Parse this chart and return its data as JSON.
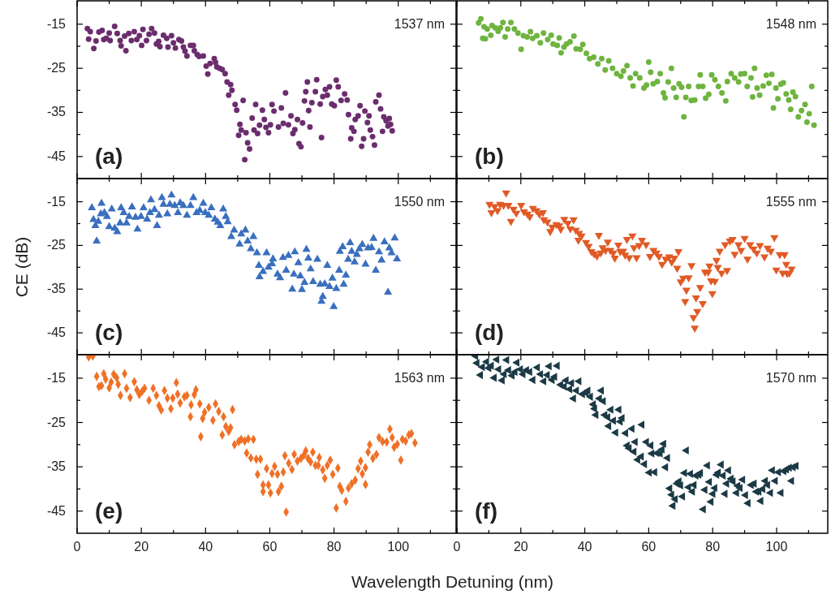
{
  "chart_data": [
    {
      "type": "scatter",
      "annotations": [
        "1537 nm",
        "(a)"
      ],
      "marker": "circle",
      "tick_labels": "y",
      "xlim": [
        0,
        118
      ],
      "ylim": [
        -50,
        -9.7
      ],
      "xticks": [
        0,
        {
          "value": 10,
          "label": null
        },
        20,
        {
          "value": 30,
          "label": null
        },
        40,
        {
          "value": 50,
          "label": null
        },
        60,
        {
          "value": 70,
          "label": null
        },
        80,
        {
          "value": 90,
          "label": null
        },
        100,
        {
          "value": 110,
          "label": null
        }
      ],
      "yticks": [
        -45,
        {
          "value": -40,
          "label": null
        },
        -35,
        {
          "value": -30,
          "label": null
        },
        -25,
        {
          "value": -20,
          "label": null
        },
        -15
      ],
      "series": [
        {
          "color": "#6b2d6e",
          "x": [
            3.2,
            4.1,
            3.6,
            5.2,
            5.9,
            6.8,
            7.8,
            8.3,
            9.1,
            10,
            10.3,
            11.7,
            12.5,
            13.4,
            13.7,
            14.8,
            15.2,
            16.1,
            16.9,
            17.8,
            18.6,
            19.4,
            20.1,
            20.5,
            21.6,
            22.4,
            23.2,
            24.1,
            24.7,
            25.4,
            25.8,
            26.9,
            27.9,
            28.3,
            29.4,
            30,
            30.6,
            31.7,
            32.5,
            33.1,
            33.6,
            34.2,
            35.3,
            36.2,
            36.5,
            37.4,
            38,
            39.3,
            40.2,
            40.7,
            41.4,
            42.7,
            43.1,
            43.5,
            44.4,
            45.2,
            46.1,
            46.7,
            47.8,
            48.2,
            47.2,
            49.2,
            49.7,
            50.7,
            51.7,
            50.3,
            51.1,
            52.6,
            53.1,
            53.7,
            52.2,
            54.5,
            55.1,
            55.6,
            56.2,
            56.8,
            57.7,
            58.3,
            58.8,
            59.6,
            60.2,
            60.7,
            61.3,
            62.7,
            63.6,
            64.2,
            64.9,
            65.8,
            66.6,
            67.2,
            67.8,
            68.6,
            69.1,
            69.7,
            70.2,
            70.8,
            71.2,
            71.7,
            72.1,
            72.5,
            73.1,
            74.2,
            74.6,
            75.7,
            76.1,
            76.5,
            77.3,
            77.9,
            78.6,
            79.3,
            80.1,
            80.7,
            81.3,
            82.2,
            83.3,
            84.1,
            84.5,
            85.2,
            85.5,
            86.2,
            86.6,
            87.5,
            88.1,
            88.6,
            89.2,
            89.6,
            90.4,
            90.9,
            91.3,
            92,
            92.6,
            93,
            94,
            94.5,
            95.1,
            95.5,
            96.2,
            96.8,
            97.2,
            97.6,
            98.1
          ],
          "values": [
            -16,
            -16.7,
            -18.4,
            -20.5,
            -18.8,
            -16.8,
            -16.4,
            -18.5,
            -18.2,
            -17,
            -18.7,
            -15.5,
            -17.1,
            -18.7,
            -19.9,
            -17.7,
            -21,
            -17.1,
            -18.7,
            -16.7,
            -18.5,
            -17.6,
            -19.8,
            -16.2,
            -18.7,
            -17.3,
            -16,
            -17,
            -19.5,
            -18.9,
            -20.1,
            -17.5,
            -18.2,
            -20.2,
            -17.6,
            -19.2,
            -20.4,
            -18.5,
            -18.8,
            -20.2,
            -21.1,
            -22.2,
            -19.8,
            -19.8,
            -21,
            -21.9,
            -22.3,
            -22.2,
            -24.5,
            -26.3,
            -23.9,
            -22.8,
            -23.7,
            -24.7,
            -25,
            -25.3,
            -26.2,
            -28.1,
            -28.7,
            -30,
            -31.1,
            -33.2,
            -34.5,
            -37.7,
            -32.3,
            -40.2,
            -39,
            -39.6,
            -41.9,
            -43.3,
            -45.7,
            -36.3,
            -39,
            -33.2,
            -39.8,
            -37.9,
            -34.5,
            -36.6,
            -38.4,
            -39.6,
            -37.8,
            -33.2,
            -34.7,
            -38.3,
            -34,
            -37.5,
            -30.6,
            -37.8,
            -35.8,
            -39.8,
            -38.9,
            -36.6,
            -42.1,
            -42.8,
            -37.4,
            -32.4,
            -30.3,
            -28.1,
            -34.6,
            -38.3,
            -32.8,
            -30.3,
            -27.6,
            -33.1,
            -40.7,
            -31.4,
            -29.8,
            -31.1,
            -29.2,
            -33.1,
            -33.5,
            -27.7,
            -29.2,
            -32.3,
            -30.8,
            -32.2,
            -35.5,
            -41,
            -38.5,
            -39.3,
            -36.6,
            -35.8,
            -33.5,
            -42.7,
            -41,
            -34.7,
            -37.3,
            -35.8,
            -39,
            -40.5,
            -42.4,
            -32.6,
            -31.1,
            -34.2,
            -39.3,
            -36,
            -36.9,
            -38.1,
            -36.4,
            -37.7,
            -39.2
          ]
        }
      ]
    },
    {
      "type": "scatter",
      "annotations": [
        "1548 nm",
        "(b)"
      ],
      "marker": "circle",
      "tick_labels": false,
      "xlim": [
        0,
        116
      ],
      "ylim": [
        -50,
        -9.7
      ],
      "xticks": [
        0,
        {
          "value": 10,
          "label": null
        },
        20,
        {
          "value": 30,
          "label": null
        },
        40,
        {
          "value": 50,
          "label": null
        },
        60,
        {
          "value": 70,
          "label": null
        },
        80,
        {
          "value": 90,
          "label": null
        },
        100,
        {
          "value": 110,
          "label": null
        }
      ],
      "yticks": [
        -45,
        {
          "value": -40,
          "label": null
        },
        -35,
        {
          "value": -30,
          "label": null
        },
        -25,
        {
          "value": -20,
          "label": null
        },
        -15
      ],
      "series": [
        {
          "color": "#6eb43f",
          "x": [
            6.8,
            7.5,
            8.1,
            8.9,
            8.5,
            9.5,
            10.6,
            11,
            12,
            12.9,
            13.6,
            14.4,
            15.1,
            15.9,
            16.9,
            18,
            19.1,
            20.1,
            20.8,
            22,
            23,
            23.7,
            25,
            26.1,
            27.1,
            28.4,
            29.5,
            30.1,
            31.4,
            32.6,
            32,
            33.5,
            34.3,
            35.4,
            36.6,
            37.3,
            38.6,
            39.4,
            40.5,
            41.5,
            42.8,
            44.1,
            45.3,
            46.4,
            47.5,
            48.7,
            50,
            51.3,
            52.1,
            53.2,
            54.2,
            55.1,
            55.9,
            57.2,
            58.5,
            59.3,
            60,
            60.6,
            61.4,
            62.7,
            63.6,
            64.6,
            65.1,
            66.1,
            67.1,
            67.8,
            68.6,
            69.5,
            70.3,
            71,
            71.6,
            72.5,
            73.3,
            74.4,
            75.6,
            76.1,
            76.9,
            77.8,
            78.8,
            79.7,
            80.7,
            81.8,
            82.9,
            84.1,
            84.6,
            85.8,
            86.9,
            88.1,
            88.8,
            90,
            90.8,
            92,
            92.5,
            93.1,
            93.9,
            94.7,
            95.8,
            96.8,
            97.6,
            98.5,
            99,
            99.8,
            100.4,
            101.3,
            102.1,
            103,
            103.8,
            104.4,
            105.1,
            105.9,
            106.8,
            107.8,
            108.9,
            109.5,
            110.2,
            111,
            111.7
          ],
          "values": [
            -14.7,
            -13.8,
            -18.2,
            -18.3,
            -15.6,
            -16.1,
            -17.5,
            -15.3,
            -15.8,
            -16.6,
            -15.8,
            -14.6,
            -17.9,
            -16.1,
            -14.6,
            -16.1,
            -17,
            -20.7,
            -17.6,
            -17.9,
            -16.7,
            -18.2,
            -17.6,
            -19.2,
            -17,
            -18.5,
            -17.5,
            -19.5,
            -19.8,
            -21.5,
            -18.1,
            -20.2,
            -19.5,
            -19,
            -17.7,
            -20.6,
            -20.7,
            -19.6,
            -21.6,
            -22.8,
            -22.5,
            -24,
            -22.8,
            -25.4,
            -23.3,
            -25,
            -26.2,
            -26.8,
            -25.6,
            -24.4,
            -27.2,
            -29,
            -26.2,
            -27.2,
            -29.5,
            -28.8,
            -23.6,
            -25.9,
            -28.5,
            -28,
            -26.2,
            -30.6,
            -31.7,
            -28.1,
            -25,
            -29.5,
            -31.6,
            -28.5,
            -29.3,
            -36,
            -31.6,
            -29.1,
            -32.3,
            -32.2,
            -29.1,
            -26.5,
            -29.1,
            -31.8,
            -30.9,
            -26.5,
            -27.6,
            -29.1,
            -30.6,
            -32.4,
            -28,
            -26.2,
            -27.2,
            -28.1,
            -26.3,
            -26.2,
            -29.1,
            -27.2,
            -31.5,
            -25,
            -29.5,
            -31.1,
            -29,
            -26.6,
            -28.4,
            -26.4,
            -34,
            -29.5,
            -31.9,
            -28.6,
            -28.3,
            -30.8,
            -32.2,
            -34.3,
            -30.4,
            -31.4,
            -36,
            -34.6,
            -33.2,
            -37.2,
            -35.3,
            -29.1,
            -37.9
          ]
        }
      ]
    },
    {
      "type": "scatter",
      "annotations": [
        "1550 nm",
        "(c)"
      ],
      "ylabel": "CE (dB)",
      "marker": "triangle",
      "tick_labels": "y",
      "xlim": [
        0,
        118
      ],
      "ylim": [
        -50,
        -9.7
      ],
      "xticks": [
        0,
        {
          "value": 10,
          "label": null
        },
        20,
        {
          "value": 30,
          "label": null
        },
        40,
        {
          "value": 50,
          "label": null
        },
        60,
        {
          "value": 70,
          "label": null
        },
        80,
        {
          "value": 90,
          "label": null
        },
        100,
        {
          "value": 110,
          "label": null
        }
      ],
      "yticks": [
        -45,
        {
          "value": -40,
          "label": null
        },
        -35,
        {
          "value": -30,
          "label": null
        },
        -25,
        {
          "value": -20,
          "label": null
        },
        -15
      ],
      "series": [
        {
          "color": "#3a6fbf",
          "x": [
            4.6,
            5.1,
            5.7,
            6.1,
            6.6,
            7.6,
            7.4,
            8.5,
            9.3,
            10,
            10.8,
            11.7,
            12.5,
            13.4,
            13.7,
            14.5,
            15.4,
            16.2,
            17.1,
            18.2,
            18.8,
            19.9,
            20.7,
            21.8,
            22.7,
            23,
            24.1,
            24.9,
            25.5,
            26.4,
            26.9,
            28.1,
            28.9,
            29.4,
            30.4,
            31.4,
            32.1,
            33.1,
            34.2,
            35.3,
            36.2,
            37.2,
            38.2,
            39.3,
            39.9,
            41,
            41.8,
            42.9,
            43.8,
            44.6,
            45.5,
            46.3,
            46.9,
            48,
            48.9,
            50.6,
            51.1,
            52.4,
            53.1,
            54.1,
            54.9,
            56,
            56.8,
            57.9,
            56.6,
            59,
            59.6,
            60.7,
            61,
            62.4,
            63.2,
            64.1,
            65.1,
            65.8,
            67,
            67.5,
            67.8,
            68.9,
            69.5,
            70,
            70.8,
            71.4,
            72,
            72.7,
            73.5,
            74.8,
            75.7,
            76.1,
            76.5,
            77.1,
            77.9,
            78.6,
            79.5,
            79.9,
            80.7,
            81.6,
            81.8,
            82.7,
            83,
            83.7,
            84.4,
            85,
            85.5,
            86.4,
            87.1,
            87.9,
            88.8,
            89.8,
            90.6,
            91.7,
            92.3,
            93,
            94,
            94.8,
            95.7,
            96.8,
            97.2,
            97.9,
            98.9,
            99.6
          ],
          "values": [
            -16.4,
            -19.1,
            -20.5,
            -24,
            -19.5,
            -15.4,
            -17.8,
            -17.5,
            -18.4,
            -20.7,
            -16.7,
            -21.1,
            -21.9,
            -19.9,
            -16.4,
            -17.5,
            -19.9,
            -18.4,
            -16.2,
            -18.6,
            -21.3,
            -18.4,
            -16.4,
            -19,
            -17.5,
            -14.6,
            -16.8,
            -20.5,
            -18.1,
            -14.1,
            -15.6,
            -17.8,
            -15.6,
            -13.5,
            -15.9,
            -17.5,
            -15.3,
            -15.9,
            -18.1,
            -15.9,
            -14.1,
            -17.5,
            -17,
            -15.4,
            -17.5,
            -18.1,
            -16.4,
            -19,
            -19.7,
            -20.5,
            -16.7,
            -18.4,
            -19.6,
            -23,
            -21.5,
            -24.7,
            -22.4,
            -21.5,
            -24,
            -25.8,
            -23,
            -26.7,
            -32.2,
            -31,
            -29.6,
            -26.7,
            -30,
            -29.2,
            -28.1,
            -31.6,
            -32.4,
            -27.8,
            -30.7,
            -27.3,
            -35,
            -31.6,
            -26.5,
            -29,
            -32,
            -35.1,
            -33.5,
            -25.9,
            -27.9,
            -30.4,
            -33.3,
            -28.2,
            -33.9,
            -37.8,
            -36.7,
            -33.8,
            -29.6,
            -34.4,
            -32.5,
            -39,
            -34.9,
            -30.7,
            -26.4,
            -25.3,
            -33.9,
            -31.8,
            -28.2,
            -24.4,
            -26.4,
            -28.8,
            -27.1,
            -25.8,
            -24.8,
            -29.3,
            -25.6,
            -25.5,
            -23.4,
            -30.7,
            -26.5,
            -28.4,
            -24.2,
            -35.7,
            -25.6,
            -26.7,
            -23.3,
            -28.1
          ]
        }
      ]
    },
    {
      "type": "scatter",
      "annotations": [
        "1555 nm",
        "(d)"
      ],
      "marker": "triangle-down",
      "tick_labels": false,
      "xlim": [
        0,
        116
      ],
      "ylim": [
        -50,
        -9.7
      ],
      "xticks": [
        0,
        {
          "value": 10,
          "label": null
        },
        20,
        {
          "value": 30,
          "label": null
        },
        40,
        {
          "value": 50,
          "label": null
        },
        60,
        {
          "value": 70,
          "label": null
        },
        80,
        {
          "value": 90,
          "label": null
        },
        100,
        {
          "value": 110,
          "label": null
        }
      ],
      "yticks": [
        -45,
        {
          "value": -40,
          "label": null
        },
        -35,
        {
          "value": -30,
          "label": null
        },
        -25,
        {
          "value": -20,
          "label": null
        },
        -15
      ],
      "series": [
        {
          "color": "#e05a26",
          "x": [
            10.2,
            10.8,
            11.8,
            12.7,
            13.5,
            14.6,
            15.4,
            16.1,
            16.9,
            17.7,
            18.6,
            20.1,
            21,
            22.1,
            22.8,
            23.8,
            24.9,
            25.8,
            26.9,
            27.2,
            28.3,
            29.2,
            29.8,
            31.1,
            32,
            32.5,
            33.6,
            34.7,
            35.5,
            36.5,
            37.2,
            38.2,
            39,
            38,
            40.4,
            41.2,
            42.1,
            42.9,
            43.8,
            44.4,
            45,
            45.6,
            46.5,
            47.2,
            48,
            48.9,
            49.4,
            50.5,
            51.1,
            52,
            52.6,
            53.2,
            53.9,
            54.9,
            55.4,
            56.2,
            57,
            57.9,
            59.2,
            60.4,
            61.5,
            62.4,
            63.2,
            64.2,
            65.3,
            66.4,
            67.2,
            68,
            68.9,
            69.3,
            70,
            70.8,
            71.4,
            71.8,
            72.5,
            73.4,
            74,
            74.4,
            74.8,
            75.2,
            76.1,
            76.9,
            77.6,
            78.6,
            79,
            79.5,
            79.9,
            80.7,
            81.2,
            81.6,
            82.2,
            82.8,
            83.9,
            84.5,
            85.4,
            86.2,
            86.9,
            88.1,
            88.9,
            90,
            90.9,
            91.7,
            92.8,
            93.8,
            94.8,
            96.2,
            97.2,
            98.2,
            99.3,
            99.9,
            101,
            101.9,
            102.5,
            103,
            103.3,
            104,
            104.7
          ],
          "values": [
            -15.6,
            -17.5,
            -16.1,
            -17,
            -15.6,
            -15.8,
            -13,
            -15.8,
            -19.5,
            -16.7,
            -17.6,
            -15.8,
            -17.3,
            -17.8,
            -18.4,
            -16.5,
            -17,
            -17.8,
            -17.5,
            -19.1,
            -19.6,
            -21.8,
            -20.8,
            -20.2,
            -20.5,
            -21.3,
            -19,
            -19.9,
            -21.2,
            -19.1,
            -21.5,
            -22.2,
            -22.8,
            -23.8,
            -24.3,
            -25.2,
            -26.4,
            -26.9,
            -27.4,
            -22.7,
            -26.7,
            -25.5,
            -26.1,
            -24.2,
            -26.1,
            -26.7,
            -27.9,
            -24.9,
            -26.4,
            -26.3,
            -27.2,
            -23.6,
            -27.8,
            -22.8,
            -25.5,
            -27.8,
            -25,
            -23.8,
            -24.8,
            -27.5,
            -26.1,
            -26.7,
            -27.5,
            -29.3,
            -28.1,
            -27.6,
            -28.8,
            -27.9,
            -30.2,
            -26.4,
            -33.3,
            -32.5,
            -37.8,
            -35.2,
            -32.4,
            -29.6,
            -41.5,
            -43.9,
            -37,
            -40.1,
            -34.6,
            -38.3,
            -31.1,
            -31.1,
            -29.7,
            -33.1,
            -36,
            -33.2,
            -28.4,
            -30,
            -26.3,
            -31.3,
            -24.8,
            -30.7,
            -24,
            -23.6,
            -27,
            -24.8,
            -26.1,
            -23.4,
            -28.1,
            -24.8,
            -25.8,
            -26.7,
            -25,
            -27.6,
            -25.6,
            -26.3,
            -23.2,
            -30.6,
            -27.1,
            -31.3,
            -27.1,
            -29.3,
            -31.4,
            -31.3,
            -30.4
          ]
        }
      ]
    },
    {
      "type": "scatter",
      "annotations": [
        "1563 nm",
        "(e)"
      ],
      "xlabel": "Wavelength Detuning (nm)",
      "marker": "diamond",
      "xlim": [
        0,
        118
      ],
      "ylim": [
        -50,
        -9.7
      ],
      "xticks": [
        0,
        {
          "value": 10,
          "label": null
        },
        20,
        {
          "value": 30,
          "label": null
        },
        40,
        {
          "value": 50,
          "label": null
        },
        60,
        {
          "value": 70,
          "label": null
        },
        80,
        {
          "value": 90,
          "label": null
        },
        100,
        {
          "value": 110,
          "label": null
        }
      ],
      "yticks": [
        -45,
        {
          "value": -40,
          "label": null
        },
        -35,
        {
          "value": -30,
          "label": null
        },
        -25,
        {
          "value": -20,
          "label": null
        },
        -15
      ],
      "series": [
        {
          "color": "#f07027",
          "x": [
            3.6,
            4.9,
            6.1,
            6.8,
            7.6,
            8.3,
            8.9,
            10,
            10.6,
            11.4,
            12.3,
            12.8,
            13.5,
            14.8,
            15.4,
            16.5,
            17.8,
            18.6,
            19.4,
            20.3,
            21,
            22.4,
            23.7,
            24.7,
            25.5,
            26.2,
            27.2,
            28.1,
            29.2,
            29.8,
            30.9,
            31.3,
            32.1,
            33.4,
            34.2,
            35.3,
            35.5,
            36.5,
            37,
            38.2,
            38.5,
            39.1,
            39.7,
            41,
            42.3,
            43.1,
            44.1,
            45.2,
            45.6,
            46.3,
            47.2,
            47.8,
            48.4,
            49,
            50.3,
            51.1,
            52.2,
            53.3,
            52.8,
            54.1,
            54.9,
            55.8,
            56.2,
            57.1,
            57.9,
            57.9,
            59,
            59.6,
            60.2,
            60.7,
            61.5,
            62.4,
            62.7,
            63.6,
            64.2,
            64.7,
            65.1,
            65.9,
            66.9,
            67.6,
            68.6,
            69.7,
            70.6,
            71.2,
            71.9,
            72.7,
            73.4,
            74.2,
            75.1,
            75.4,
            76.5,
            77.1,
            77.9,
            78.8,
            79.6,
            80.7,
            81.2,
            81.8,
            82.4,
            83.7,
            84.5,
            85.5,
            86.6,
            87.5,
            88.3,
            88.8,
            89.8,
            89.8,
            90.6,
            91.1,
            92.1,
            93.2,
            94,
            95.1,
            96.4,
            97.4,
            98.1,
            98.7,
            99.7,
            100.8,
            101.3,
            102.3,
            103.3,
            104.1,
            105.2
          ],
          "values": [
            -10.2,
            -10,
            -14.6,
            -16.9,
            -16.7,
            -14,
            -15.2,
            -17.2,
            -15.9,
            -14.1,
            -14.9,
            -16.4,
            -18.9,
            -14,
            -17.3,
            -19.4,
            -15.8,
            -17.6,
            -18.7,
            -17.9,
            -17.3,
            -20,
            -17.3,
            -18.9,
            -21.2,
            -22.2,
            -17.8,
            -19.5,
            -21.9,
            -19.5,
            -16,
            -18.6,
            -20.6,
            -19.2,
            -18.9,
            -23.7,
            -21,
            -18.7,
            -17.6,
            -20.8,
            -28.2,
            -24.1,
            -22.7,
            -21.6,
            -24.5,
            -20.8,
            -22.5,
            -27.8,
            -23.7,
            -25.9,
            -27,
            -26.2,
            -22.1,
            -30,
            -29.3,
            -28.8,
            -29.2,
            -28.7,
            -31.9,
            -33,
            -28.8,
            -33.3,
            -36.7,
            -33.3,
            -39.1,
            -40.6,
            -35.4,
            -39.1,
            -40.9,
            -36.5,
            -34.9,
            -36.7,
            -40.6,
            -39.4,
            -36.2,
            -32.5,
            -45.2,
            -34.2,
            -35.6,
            -32.2,
            -33.7,
            -33.1,
            -32.4,
            -31.4,
            -33.1,
            -33.9,
            -31.7,
            -34.7,
            -34.7,
            -32.9,
            -35.7,
            -37.6,
            -34.7,
            -33.5,
            -36.7,
            -44.3,
            -35.3,
            -39.4,
            -40.3,
            -42.8,
            -39.8,
            -38.8,
            -38,
            -35.4,
            -33.7,
            -36.6,
            -39,
            -35.2,
            -31.7,
            -30,
            -33.1,
            -32.2,
            -28.4,
            -29.3,
            -29.4,
            -26.5,
            -28.4,
            -30.6,
            -29.9,
            -33.5,
            -28.8,
            -29.2,
            -27.8,
            -27.5,
            -29.6
          ]
        }
      ]
    },
    {
      "type": "scatter",
      "annotations": [
        "1570 nm",
        "(f)"
      ],
      "marker": "triangle-left",
      "tick_labels": "x",
      "xlim": [
        0,
        116
      ],
      "ylim": [
        -50,
        -9.7
      ],
      "xticks": [
        0,
        {
          "value": 10,
          "label": null
        },
        20,
        {
          "value": 30,
          "label": null
        },
        40,
        {
          "value": 50,
          "label": null
        },
        60,
        {
          "value": 70,
          "label": null
        },
        80,
        {
          "value": 90,
          "label": null
        },
        100,
        {
          "value": 110,
          "label": null
        }
      ],
      "yticks": [
        -45,
        {
          "value": -40,
          "label": null
        },
        -35,
        {
          "value": -30,
          "label": null
        },
        -25,
        {
          "value": -20,
          "label": null
        },
        -15
      ],
      "series": [
        {
          "color": "#1b3a45",
          "x": [
            5.9,
            6.3,
            7.4,
            8,
            9.3,
            10,
            10.8,
            11.7,
            12.5,
            13.1,
            14.2,
            14.8,
            15.6,
            16.2,
            17.3,
            18.2,
            18.8,
            19.9,
            20.7,
            21.8,
            22.8,
            23.8,
            25.2,
            26.2,
            27.2,
            28.3,
            28.9,
            29.8,
            30.6,
            31.4,
            32.5,
            33.6,
            34.2,
            35.3,
            35.9,
            36.5,
            37.4,
            38.2,
            39.3,
            40.4,
            41,
            41.8,
            42.7,
            43.1,
            43.5,
            44.6,
            45.2,
            45.8,
            46.3,
            47.2,
            47.5,
            48.2,
            49,
            49.7,
            50.7,
            51.1,
            51.7,
            52.8,
            53.3,
            53.9,
            54.8,
            55.4,
            55.8,
            56.6,
            57.7,
            57.9,
            58.7,
            59.3,
            60.2,
            60.7,
            61,
            61.9,
            62.6,
            63.6,
            64.2,
            64.7,
            65.3,
            65.9,
            66.6,
            67.2,
            67.6,
            68.3,
            68.9,
            69.5,
            70,
            70.6,
            71.2,
            71.8,
            72.5,
            73.1,
            73.7,
            74.2,
            74.8,
            75.7,
            76.2,
            77.1,
            77.6,
            78.4,
            79,
            79.5,
            80.1,
            80.7,
            81.3,
            81.8,
            82.7,
            83.3,
            83.9,
            84.4,
            85,
            85.8,
            86.4,
            87.5,
            87.9,
            88.6,
            89.4,
            90.3,
            91.1,
            92.1,
            93,
            93.7,
            94.5,
            95.1,
            95.7,
            96.5,
            97.2,
            98.1,
            98.7,
            99.6,
            100.6,
            101.4,
            102.3,
            103.1,
            104,
            104.7,
            105.2,
            106.1
          ],
          "values": [
            -10,
            -11.6,
            -14.3,
            -12.5,
            -11.3,
            -12.7,
            -12.2,
            -14.9,
            -10.8,
            -13,
            -15.5,
            -14.1,
            -10.9,
            -13.2,
            -14.4,
            -13.6,
            -11.5,
            -13,
            -14.1,
            -13.2,
            -13.6,
            -15.4,
            -12.6,
            -14.1,
            -15.7,
            -14.3,
            -12.3,
            -15.4,
            -14.7,
            -12.2,
            -16.5,
            -16.9,
            -15.5,
            -17.5,
            -16.1,
            -19.6,
            -17.8,
            -15.7,
            -18.6,
            -18.3,
            -17.8,
            -19.2,
            -20.9,
            -21.9,
            -23.3,
            -19.6,
            -17.8,
            -20.2,
            -23.3,
            -23.8,
            -25.8,
            -22.1,
            -24.6,
            -27.3,
            -22.1,
            -24.8,
            -24,
            -27.4,
            -30.2,
            -30.8,
            -26.4,
            -31.6,
            -29.4,
            -33.4,
            -32.7,
            -25.5,
            -34.4,
            -29.4,
            -36.3,
            -30.2,
            -32,
            -36.2,
            -31.9,
            -32,
            -31.1,
            -29.8,
            -35.1,
            -33,
            -39.9,
            -41.3,
            -43.8,
            -42.3,
            -38.8,
            -38.3,
            -39.2,
            -41.7,
            -36.4,
            -31.3,
            -39.6,
            -36.6,
            -40.6,
            -39.1,
            -37,
            -36.8,
            -36.4,
            -44.6,
            -40.2,
            -34.7,
            -38.4,
            -42.9,
            -41.1,
            -39.8,
            -36.8,
            -36.3,
            -34.5,
            -37,
            -41.1,
            -38.8,
            -35.8,
            -37.7,
            -38.3,
            -40.9,
            -39.3,
            -39.8,
            -37.9,
            -41.4,
            -43.2,
            -39.1,
            -38.8,
            -40.6,
            -40.6,
            -42.7,
            -40,
            -38.2,
            -39.1,
            -40.9,
            -35.8,
            -38.2,
            -36.2,
            -40.9,
            -36,
            -35.6,
            -35.2,
            -38.2,
            -35.1,
            -34.8
          ]
        }
      ]
    }
  ]
}
